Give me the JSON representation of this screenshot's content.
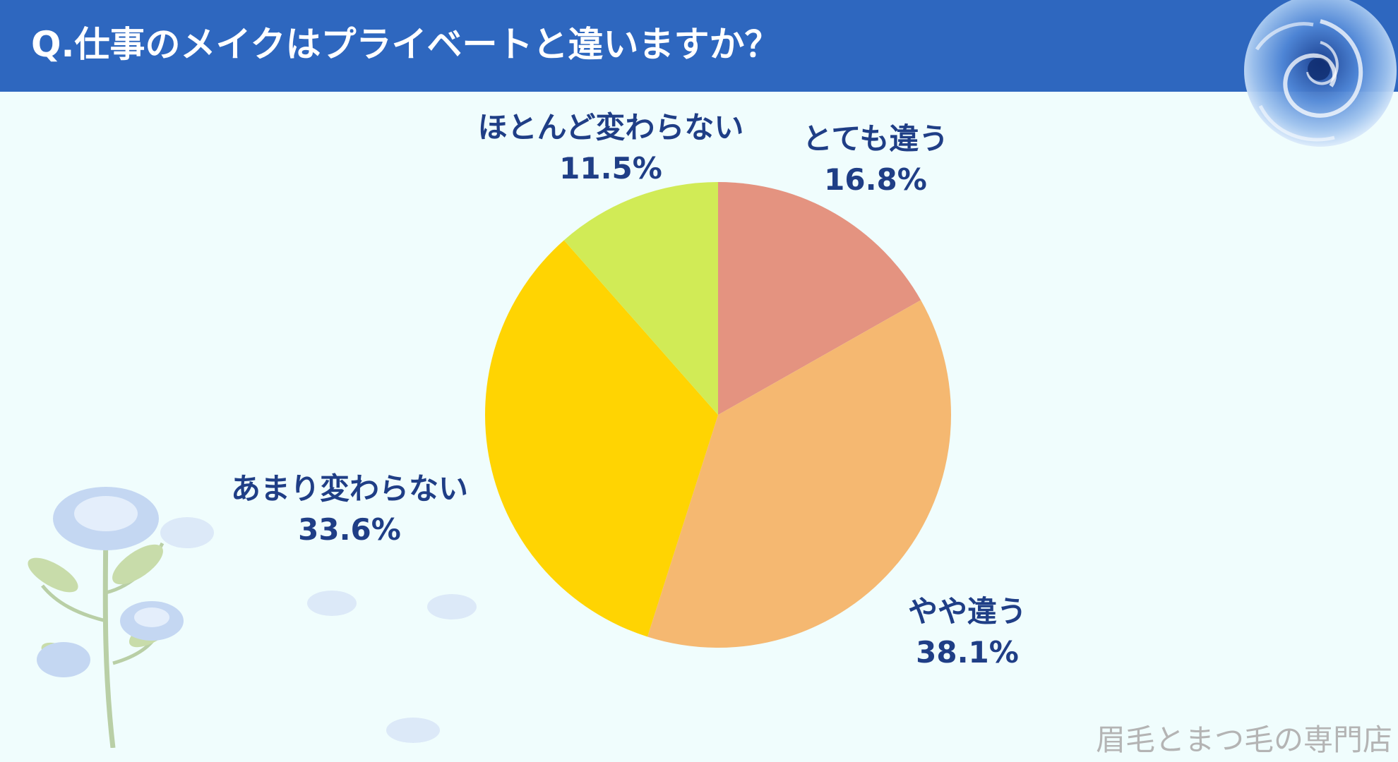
{
  "header": {
    "title": "Q.仕事のメイクはプライベートと違いますか？"
  },
  "chart_data": {
    "type": "pie",
    "title": "Q.仕事のメイクはプライベートと違いますか？",
    "start_angle_deg": 0,
    "direction": "clockwise",
    "slices": [
      {
        "label": "とても違う",
        "value": 16.8,
        "value_label": "16.8%",
        "color": "#e49380"
      },
      {
        "label": "やや違う",
        "value": 38.1,
        "value_label": "38.1%",
        "color": "#f5b871"
      },
      {
        "label": "あまり変わらない",
        "value": 33.6,
        "value_label": "33.6%",
        "color": "#ffd402"
      },
      {
        "label": "ほとんど変わらない",
        "value": 11.5,
        "value_label": "11.5%",
        "color": "#d1eb56"
      }
    ],
    "label_color": "#1f3e86"
  },
  "colors": {
    "header_background": "#2e67bf",
    "page_background": "#f0fdfd",
    "brand_text": "#b4b4b4"
  },
  "decorations": {
    "top_right": "blue-rose-icon",
    "bottom_left": "blue-rose-branch-icon"
  },
  "footer": {
    "brand": "眉毛とまつ毛の専門店"
  }
}
